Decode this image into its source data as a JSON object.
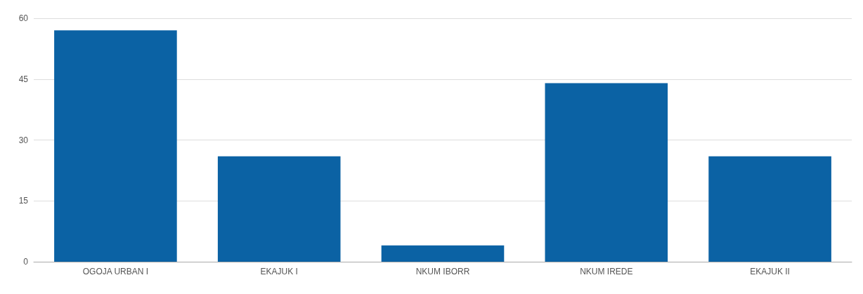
{
  "chart_data": {
    "type": "bar",
    "categories": [
      "OGOJA URBAN I",
      "EKAJUK I",
      "NKUM IBORR",
      "NKUM IREDE",
      "EKAJUK II"
    ],
    "values": [
      57,
      26,
      4,
      44,
      26
    ],
    "color": "#0b62a4",
    "ylim": [
      0,
      60
    ],
    "yticks": [
      0,
      15,
      30,
      45,
      60
    ],
    "grid": "y"
  }
}
